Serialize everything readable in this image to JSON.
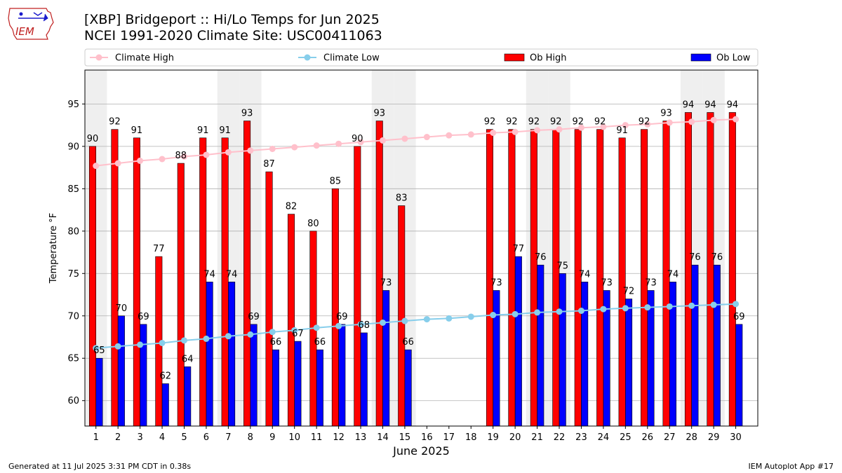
{
  "logo": {
    "text": "IEM"
  },
  "header": {
    "title_line1": "[XBP] Bridgeport :: Hi/Lo Temps for Jun 2025",
    "title_line2": "NCEI 1991-2020 Climate Site: USC00411063"
  },
  "footer": {
    "left": "Generated at 11 Jul 2025 3:31 PM CDT in 0.38s",
    "right": "IEM Autoplot App #17"
  },
  "colors": {
    "ob_high": "#ff0000",
    "ob_low": "#0000ff",
    "climate_high": "#ffc0cb",
    "climate_low": "#87ceeb",
    "weekend_shade": "#efefef",
    "grid": "#b0b0b0"
  },
  "chart_data": {
    "type": "bar",
    "xlabel": "June 2025",
    "ylabel": "Temperature °F",
    "ylim": [
      57,
      99
    ],
    "yticks": [
      60,
      65,
      70,
      75,
      80,
      85,
      90,
      95
    ],
    "grid": true,
    "legend_position": "top",
    "categories": [
      "1",
      "2",
      "3",
      "4",
      "5",
      "6",
      "7",
      "8",
      "9",
      "10",
      "11",
      "12",
      "13",
      "14",
      "15",
      "16",
      "17",
      "18",
      "19",
      "20",
      "21",
      "22",
      "23",
      "24",
      "25",
      "26",
      "27",
      "28",
      "29",
      "30"
    ],
    "weekend_days": [
      1,
      7,
      8,
      14,
      15,
      21,
      22,
      28,
      29
    ],
    "series": [
      {
        "name": "Climate High",
        "type": "line",
        "values": [
          87.7,
          88.0,
          88.3,
          88.5,
          88.8,
          89.0,
          89.3,
          89.5,
          89.7,
          89.9,
          90.1,
          90.3,
          90.5,
          90.7,
          90.9,
          91.1,
          91.3,
          91.4,
          91.6,
          91.7,
          91.9,
          92.0,
          92.2,
          92.3,
          92.5,
          92.6,
          92.8,
          92.9,
          93.1,
          93.2
        ]
      },
      {
        "name": "Climate Low",
        "type": "line",
        "values": [
          66.2,
          66.4,
          66.6,
          66.8,
          67.1,
          67.3,
          67.6,
          67.8,
          68.1,
          68.3,
          68.6,
          68.8,
          69.0,
          69.2,
          69.4,
          69.6,
          69.7,
          69.9,
          70.1,
          70.2,
          70.4,
          70.5,
          70.6,
          70.8,
          70.9,
          71.0,
          71.1,
          71.2,
          71.3,
          71.4
        ]
      },
      {
        "name": "Ob High",
        "type": "bar",
        "values": [
          90,
          92,
          91,
          77,
          88,
          91,
          91,
          93,
          87,
          82,
          80,
          85,
          90,
          93,
          83,
          null,
          null,
          null,
          92,
          92,
          92,
          92,
          92,
          92,
          91,
          92,
          93,
          94,
          94,
          94
        ]
      },
      {
        "name": "Ob Low",
        "type": "bar",
        "values": [
          65,
          70,
          69,
          62,
          64,
          74,
          74,
          69,
          66,
          67,
          66,
          69,
          68,
          73,
          66,
          null,
          null,
          null,
          73,
          77,
          76,
          75,
          74,
          73,
          72,
          73,
          74,
          76,
          76,
          69
        ]
      }
    ]
  }
}
